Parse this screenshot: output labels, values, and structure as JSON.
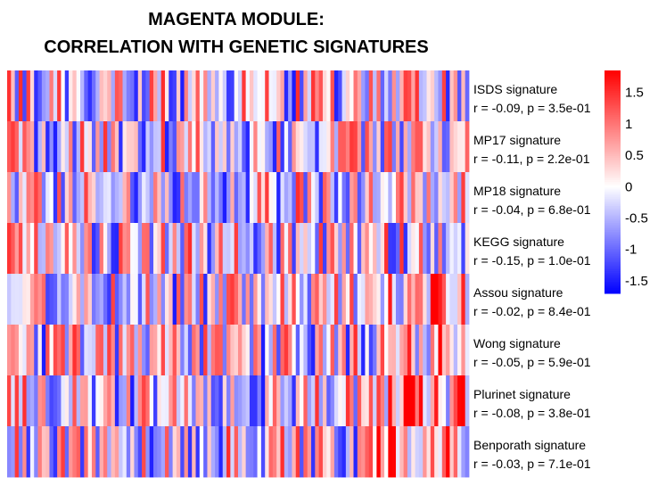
{
  "title_line1": "MAGENTA MODULE:",
  "title_line2": "CORRELATION WITH GENETIC SIGNATURES",
  "chart_data": {
    "type": "heatmap",
    "rows": [
      {
        "name": "ISDS signature",
        "stat": "r = -0.09, p = 3.5e-01"
      },
      {
        "name": "MP17 signature",
        "stat": "r = -0.11, p = 2.2e-01"
      },
      {
        "name": "MP18 signature",
        "stat": "r = -0.04, p = 6.8e-01"
      },
      {
        "name": "KEGG signature",
        "stat": "r = -0.15, p = 1.0e-01"
      },
      {
        "name": "Assou signature",
        "stat": "r = -0.02, p = 8.4e-01"
      },
      {
        "name": "Wong signature",
        "stat": "r = -0.05, p = 5.9e-01"
      },
      {
        "name": "Plurinet signature",
        "stat": "r = -0.08, p = 3.8e-01"
      },
      {
        "name": "Benporath signature",
        "stat": "r = -0.03, p = 7.1e-01"
      }
    ],
    "n_columns": 120,
    "color_scale": {
      "min": -1.7,
      "max": 1.85,
      "low_color": "#0000ff",
      "mid_color": "#ffffff",
      "high_color": "#ff0000",
      "ticks": [
        1.5,
        1,
        0.5,
        0,
        -0.5,
        -1,
        -1.5
      ],
      "tick_labels": [
        "1.5",
        "1",
        "0.5",
        "0",
        "-0.5",
        "-1",
        "-1.5"
      ]
    }
  }
}
